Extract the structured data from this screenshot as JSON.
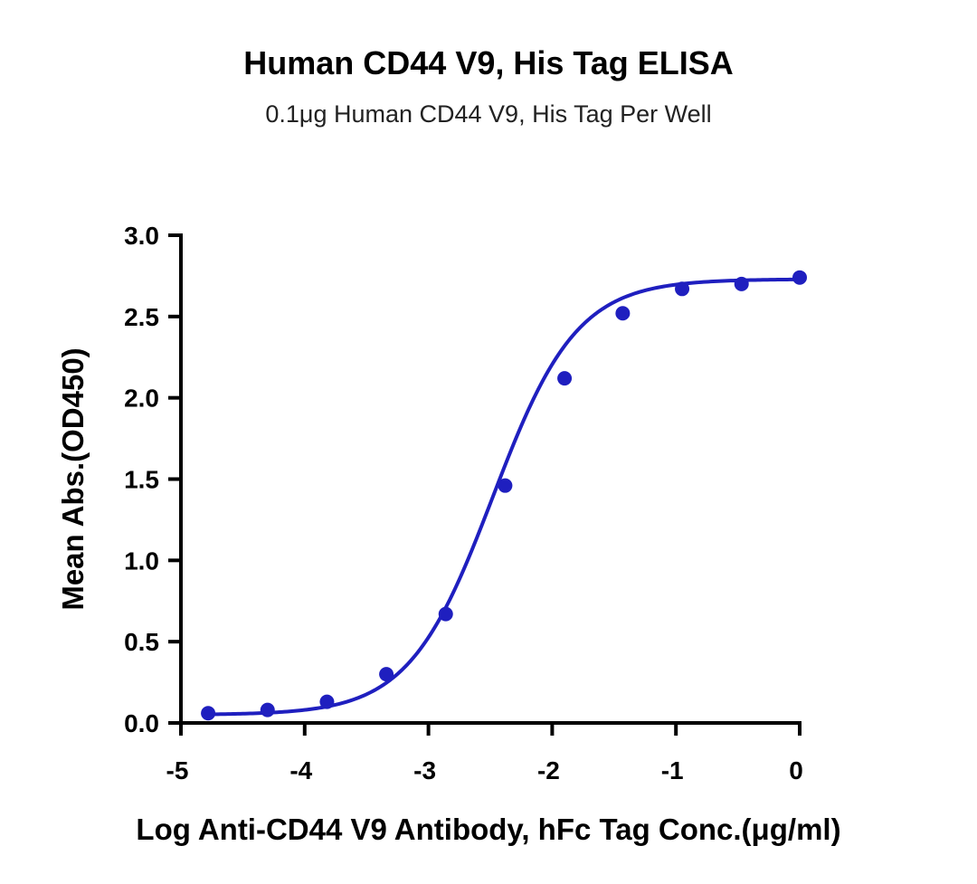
{
  "chart_data": {
    "type": "scatter",
    "title": "Human CD44 V9, His Tag ELISA",
    "subtitle": "0.1μg Human CD44 V9, His Tag Per Well",
    "xlabel": "Log Anti-CD44 V9 Antibody, hFc Tag Conc.(μg/ml)",
    "ylabel": "Mean Abs.(OD450)",
    "xlim": [
      -5,
      0
    ],
    "ylim": [
      0,
      3.0
    ],
    "x_ticks": [
      "-5",
      "-4",
      "-3",
      "-2",
      "-1",
      "0"
    ],
    "x_tick_values": [
      -5,
      -4,
      -3,
      -2,
      -1,
      0
    ],
    "y_ticks": [
      "0.0",
      "0.5",
      "1.0",
      "1.5",
      "2.0",
      "2.5",
      "3.0"
    ],
    "y_tick_values": [
      0,
      0.5,
      1.0,
      1.5,
      2.0,
      2.5,
      3.0
    ],
    "grid": false,
    "color": "#1f1fbf",
    "series": [
      {
        "points": [
          {
            "x": -4.78,
            "y": 0.06
          },
          {
            "x": -4.3,
            "y": 0.08
          },
          {
            "x": -3.82,
            "y": 0.13
          },
          {
            "x": -3.34,
            "y": 0.3
          },
          {
            "x": -2.86,
            "y": 0.67
          },
          {
            "x": -2.38,
            "y": 1.46
          },
          {
            "x": -1.9,
            "y": 2.12
          },
          {
            "x": -1.43,
            "y": 2.52
          },
          {
            "x": -0.95,
            "y": 2.67
          },
          {
            "x": -0.47,
            "y": 2.7
          },
          {
            "x": 0.0,
            "y": 2.74
          }
        ],
        "fit": {
          "model": "4PL",
          "bottom": 0.05,
          "top": 2.73,
          "log_ec50": -2.48,
          "hill_slope": 1.28
        }
      }
    ]
  }
}
